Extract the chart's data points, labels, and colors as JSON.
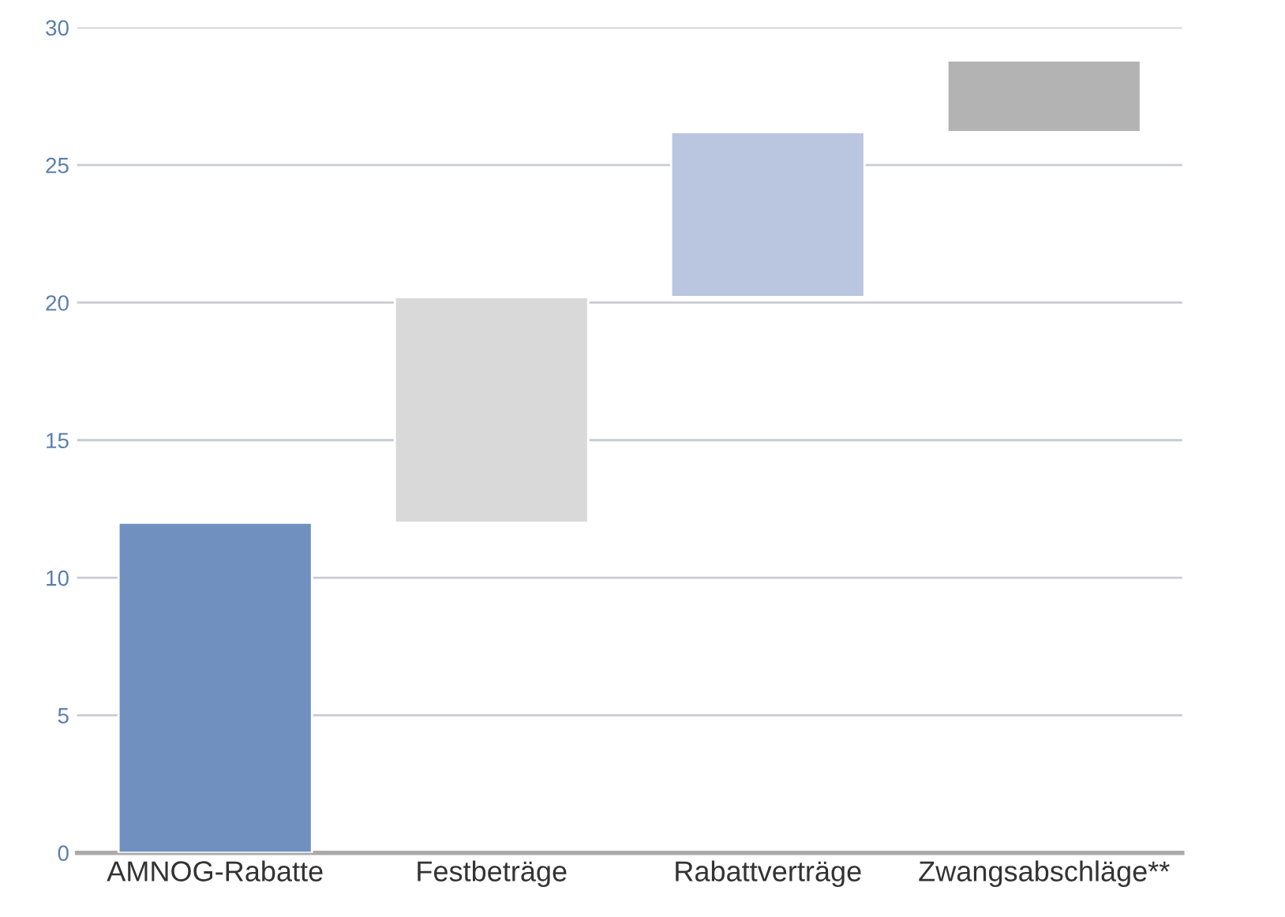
{
  "chart_data": {
    "type": "bar",
    "categories": [
      "AMNOG-Rabatte",
      "Festbeträge",
      "Rabattverträge",
      "Zwangsabschläge**"
    ],
    "values": [
      12.0,
      8.2,
      6.0,
      2.6
    ],
    "base": [
      0,
      12.0,
      20.2,
      26.2
    ],
    "colors": [
      "#7090c0",
      "#d9d9d9",
      "#bac6e0",
      "#b3b3b3"
    ],
    "ylim": [
      0,
      30
    ],
    "yticks": [
      0,
      5,
      10,
      15,
      20,
      25,
      30
    ],
    "grid": "y",
    "legend": false
  }
}
